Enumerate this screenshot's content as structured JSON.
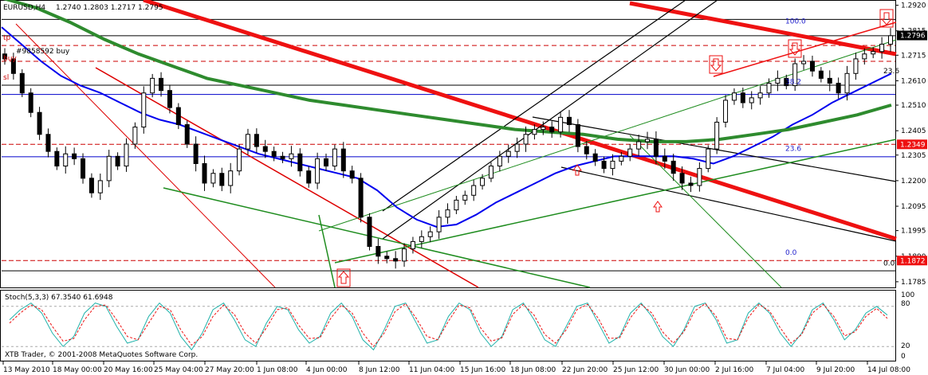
{
  "chart_data": {
    "type": "candlestick",
    "symbol_label": "EURUSD,H4",
    "ohlc_header": "1.2740 1.2803 1.2717 1.2795",
    "order_label": "#9858592 buy",
    "left_labels": [
      "tp",
      "buy",
      "sl"
    ],
    "watermark": "XTB Trader, © 2001-2008 MetaQuotes Software Corp.",
    "price_axis": {
      "ticks": [
        "1.2920",
        "1.2815",
        "1.2715",
        "1.2610",
        "1.2510",
        "1.2405",
        "1.2305",
        "1.2200",
        "1.2095",
        "1.1995",
        "1.1890",
        "1.1785"
      ],
      "ylim": [
        1.1765,
        1.2935
      ],
      "current_price": "1.2796",
      "level_labels": [
        {
          "value": "1.2349",
          "price": 1.2349
        },
        {
          "value": "1.1872",
          "price": 1.1872
        }
      ]
    },
    "time_axis": {
      "labels": [
        "13 May 2010",
        "18 May 00:00",
        "20 May 16:00",
        "25 May 04:00",
        "27 May 20:00",
        "1 Jun 08:00",
        "4 Jun 00:00",
        "8 Jun 12:00",
        "11 Jun 04:00",
        "15 Jun 16:00",
        "18 Jun 08:00",
        "22 Jun 20:00",
        "25 Jun 12:00",
        "30 Jun 00:00",
        "2 Jul 16:00",
        "7 Jul 04:00",
        "9 Jul 20:00",
        "14 Jul 08:00"
      ]
    },
    "fib_levels": [
      {
        "label": "100.0",
        "price": 1.2838
      },
      {
        "label": "38.2",
        "price": 1.259
      },
      {
        "label": "23.6",
        "price": 1.2315
      },
      {
        "label": "0.0",
        "price": 1.189
      }
    ],
    "right_fib_labels": [
      {
        "label": "23.6",
        "price": 1.2635
      },
      {
        "label": "0.0",
        "price": 1.1845
      }
    ],
    "horizontal_levels": [
      {
        "price": 1.2862,
        "color": "#000000"
      },
      {
        "price": 1.2795,
        "color": "#000000"
      },
      {
        "price": 1.2592,
        "color": "#000000"
      },
      {
        "price": 1.2554,
        "color": "#0000cc"
      },
      {
        "price": 1.2349,
        "color": "#cc0000"
      },
      {
        "price": 1.2298,
        "color": "#0000cc"
      },
      {
        "price": 1.1872,
        "color": "#cc0000"
      },
      {
        "price": 1.183,
        "color": "#000000"
      }
    ],
    "price_series": [
      1.27,
      1.264,
      1.256,
      1.248,
      1.239,
      1.232,
      1.226,
      1.231,
      1.229,
      1.221,
      1.215,
      1.22,
      1.23,
      1.226,
      1.235,
      1.242,
      1.256,
      1.262,
      1.257,
      1.25,
      1.243,
      1.235,
      1.227,
      1.219,
      1.223,
      1.218,
      1.224,
      1.233,
      1.239,
      1.234,
      1.232,
      1.23,
      1.229,
      1.231,
      1.224,
      1.219,
      1.229,
      1.226,
      1.233,
      1.224,
      1.221,
      1.205,
      1.193,
      1.189,
      1.188,
      1.187,
      1.192,
      1.195,
      1.197,
      1.199,
      1.205,
      1.208,
      1.212,
      1.214,
      1.218,
      1.221,
      1.226,
      1.23,
      1.232,
      1.235,
      1.239,
      1.241,
      1.242,
      1.24,
      1.246,
      1.243,
      1.234,
      1.231,
      1.228,
      1.225,
      1.228,
      1.23,
      1.233,
      1.236,
      1.237,
      1.23,
      1.228,
      1.223,
      1.219,
      1.218,
      1.225,
      1.233,
      1.244,
      1.253,
      1.256,
      1.252,
      1.254,
      1.256,
      1.26,
      1.262,
      1.259,
      1.268,
      1.269,
      1.265,
      1.262,
      1.26,
      1.256,
      1.264,
      1.27,
      1.272,
      1.273,
      1.276,
      1.2795
    ],
    "series": [
      {
        "name": "MA-blue",
        "color": "#0000ee",
        "values": [
          1.283,
          1.276,
          1.269,
          1.263,
          1.259,
          1.256,
          1.252,
          1.248,
          1.245,
          1.243,
          1.24,
          1.237,
          1.234,
          1.231,
          1.229,
          1.227,
          1.225,
          1.223,
          1.221,
          1.216,
          1.209,
          1.204,
          1.201,
          1.202,
          1.206,
          1.211,
          1.215,
          1.219,
          1.223,
          1.226,
          1.228,
          1.23,
          1.23,
          1.23,
          1.23,
          1.229,
          1.227,
          1.23,
          1.234,
          1.238,
          1.243,
          1.247,
          1.252,
          1.256,
          1.26,
          1.264
        ]
      },
      {
        "name": "MA-green",
        "color": "#2e8b2e",
        "values": [
          1.295,
          1.291,
          1.285,
          1.278,
          1.272,
          1.267,
          1.262,
          1.259,
          1.256,
          1.253,
          1.251,
          1.249,
          1.247,
          1.245,
          1.243,
          1.241,
          1.24,
          1.239,
          1.237,
          1.236,
          1.236,
          1.237,
          1.239,
          1.241,
          1.244,
          1.247,
          1.251
        ]
      }
    ],
    "stochastic": {
      "label": "Stoch(5,3,3) 67.3540 61.6948",
      "levels": [
        "100",
        "80",
        "20",
        "0"
      ],
      "main": [
        60,
        75,
        85,
        70,
        40,
        20,
        35,
        70,
        85,
        80,
        50,
        25,
        30,
        65,
        85,
        70,
        35,
        15,
        40,
        75,
        85,
        60,
        30,
        20,
        55,
        80,
        75,
        45,
        25,
        35,
        70,
        85,
        65,
        30,
        15,
        45,
        80,
        85,
        55,
        25,
        30,
        65,
        85,
        75,
        40,
        20,
        35,
        75,
        85,
        60,
        30,
        20,
        50,
        80,
        85,
        55,
        25,
        35,
        70,
        85,
        65,
        35,
        20,
        45,
        80,
        85,
        60,
        25,
        30,
        70,
        85,
        70,
        40,
        20,
        40,
        75,
        85,
        60,
        30,
        45,
        70,
        80,
        67
      ],
      "signal": [
        55,
        70,
        82,
        75,
        50,
        28,
        32,
        60,
        80,
        82,
        60,
        35,
        30,
        55,
        80,
        75,
        45,
        22,
        35,
        65,
        82,
        68,
        40,
        25,
        48,
        75,
        78,
        52,
        32,
        33,
        62,
        82,
        70,
        40,
        20,
        40,
        72,
        84,
        62,
        35,
        30,
        58,
        82,
        78,
        48,
        28,
        33,
        68,
        83,
        67,
        38,
        25,
        45,
        75,
        83,
        62,
        32,
        33,
        63,
        83,
        70,
        42,
        25,
        42,
        73,
        84,
        65,
        32,
        30,
        63,
        83,
        73,
        48,
        25,
        38,
        70,
        83,
        65,
        36,
        42,
        65,
        77,
        62
      ]
    }
  }
}
